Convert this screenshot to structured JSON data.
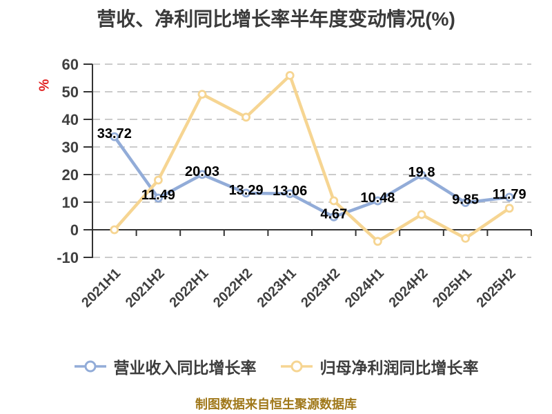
{
  "title": "营收、净利同比增长率半年度变动情况(%)",
  "footer": "制图数据来自恒生聚源数据库",
  "chart_data": {
    "type": "line",
    "categories": [
      "2021H1",
      "2021H2",
      "2022H1",
      "2022H2",
      "2023H1",
      "2023H2",
      "2024H1",
      "2024H2",
      "2025H1",
      "2025H2"
    ],
    "series": [
      {
        "name": "营业收入同比增长率",
        "color": "#92ACD8",
        "values": [
          33.72,
          11.49,
          20.03,
          13.29,
          13.06,
          4.67,
          10.48,
          19.8,
          9.85,
          11.79
        ],
        "labels_shown": true
      },
      {
        "name": "归母净利润同比增长率",
        "color": "#F6D592",
        "values": [
          0,
          18,
          49.1,
          40.8,
          55.9,
          10.5,
          -4.2,
          5.5,
          -3.1,
          7.8
        ],
        "labels_shown": false
      }
    ],
    "ylabel": "%",
    "ylim": [
      -10,
      60
    ],
    "ytick_step": 10,
    "grid": true,
    "grid_style": "dashed",
    "legend_position": "bottom"
  },
  "colors": {
    "title": "#3A3A3A",
    "axis": "#333333",
    "grid": "#CBCBCB",
    "tick_label": "#3F3F3F",
    "data_label": "#000000",
    "marker_fill": "#FFFFFF",
    "y_unit_label": "#E01E1E",
    "footer": "#A0781A",
    "background": "#FFFFFF"
  }
}
